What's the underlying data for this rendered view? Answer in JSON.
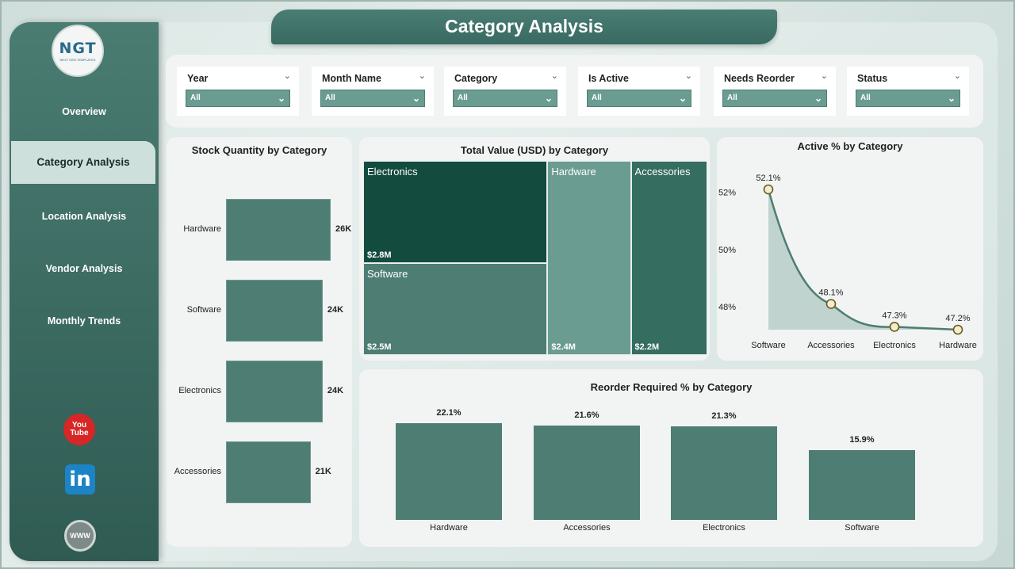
{
  "title": "Category Analysis",
  "logo": {
    "text": "NGT",
    "subtext": "NEXT GEN TEMPLATES"
  },
  "nav": [
    {
      "label": "Overview"
    },
    {
      "label": "Category Analysis"
    },
    {
      "label": "Location Analysis"
    },
    {
      "label": "Vendor Analysis"
    },
    {
      "label": "Monthly Trends"
    }
  ],
  "social": {
    "youtube": "You Tube",
    "linkedin": "in",
    "web": "WWW"
  },
  "filters": [
    {
      "label": "Year",
      "value": "All"
    },
    {
      "label": "Month Name",
      "value": "All"
    },
    {
      "label": "Category",
      "value": "All"
    },
    {
      "label": "Is Active",
      "value": "All"
    },
    {
      "label": "Needs Reorder",
      "value": "All"
    },
    {
      "label": "Status",
      "value": "All"
    }
  ],
  "charts": {
    "stock": {
      "title": "Stock Quantity by Category"
    },
    "value": {
      "title": "Total Value (USD) by Category"
    },
    "active": {
      "title": "Active % by Category"
    },
    "reorder": {
      "title": "Reorder Required % by Category"
    }
  },
  "colors": {
    "accent": "#4e7d73",
    "treemap_dark": "#134b3f",
    "treemap_mid": "#4e7d73",
    "treemap_light": "#6b9c91",
    "treemap_alt": "#356d60"
  },
  "chart_data": [
    {
      "type": "bar",
      "orientation": "horizontal",
      "title": "Stock Quantity by Category",
      "categories": [
        "Hardware",
        "Software",
        "Electronics",
        "Accessories"
      ],
      "values": [
        26000,
        24000,
        24000,
        21000
      ],
      "labels": [
        "26K",
        "24K",
        "24K",
        "21K"
      ]
    },
    {
      "type": "treemap",
      "title": "Total Value (USD) by Category",
      "categories": [
        "Electronics",
        "Software",
        "Hardware",
        "Accessories"
      ],
      "values": [
        2.8,
        2.5,
        2.4,
        2.2
      ],
      "labels": [
        "$2.8M",
        "$2.5M",
        "$2.4M",
        "$2.2M"
      ]
    },
    {
      "type": "area",
      "title": "Active % by Category",
      "categories": [
        "Software",
        "Accessories",
        "Electronics",
        "Hardware"
      ],
      "values": [
        52.1,
        48.1,
        47.3,
        47.2
      ],
      "labels": [
        "52.1%",
        "48.1%",
        "47.3%",
        "47.2%"
      ],
      "yticks": [
        "52%",
        "50%",
        "48%"
      ],
      "ylim": [
        47.2,
        52.1
      ]
    },
    {
      "type": "bar",
      "title": "Reorder Required % by Category",
      "categories": [
        "Hardware",
        "Accessories",
        "Electronics",
        "Software"
      ],
      "values": [
        22.1,
        21.6,
        21.3,
        15.9
      ],
      "labels": [
        "22.1%",
        "21.6%",
        "21.3%",
        "15.9%"
      ]
    }
  ]
}
